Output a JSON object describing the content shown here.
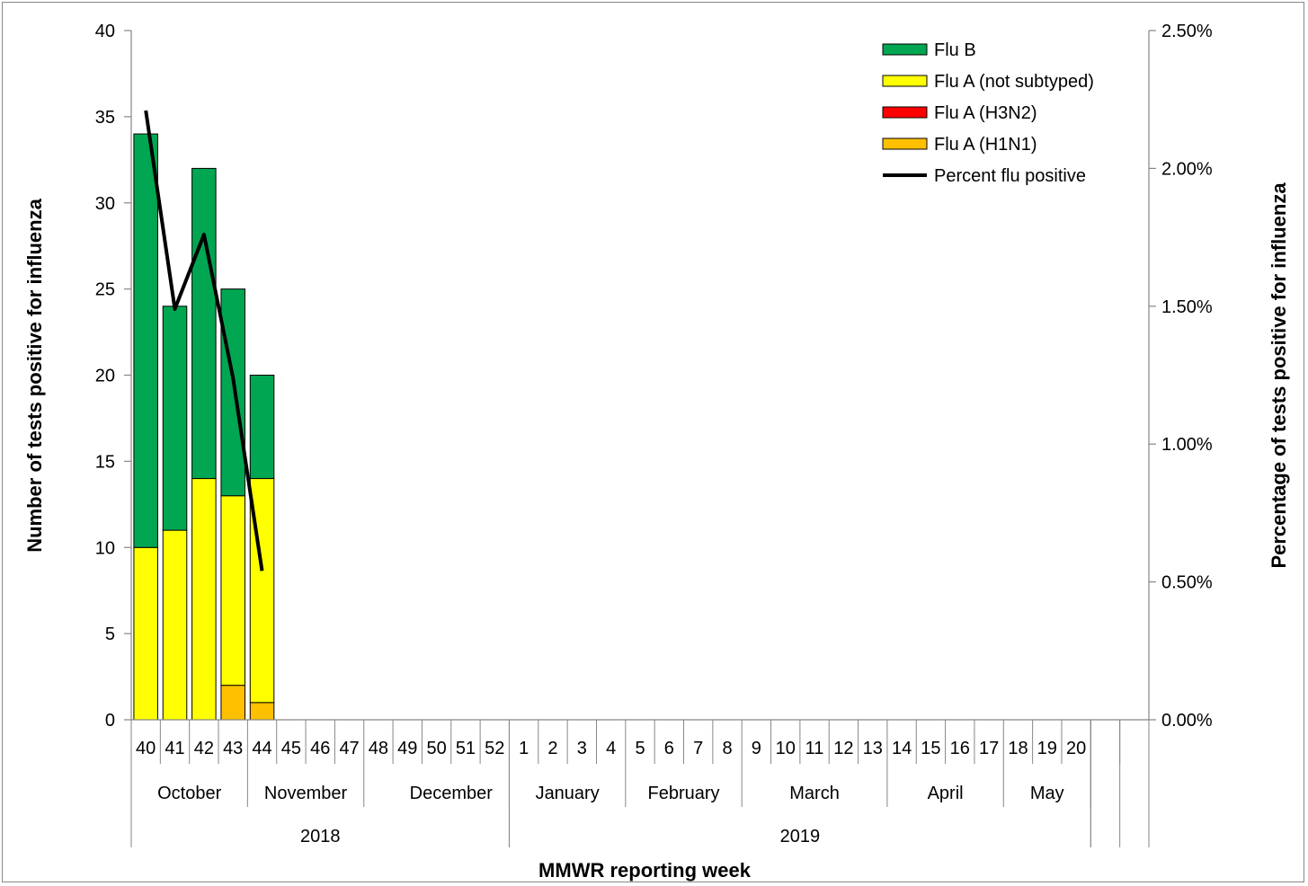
{
  "chart_data": {
    "type": "bar",
    "title": "",
    "xlabel": "MMWR reporting week",
    "ylabel_left": "Number of tests positive for influenza",
    "ylabel_right": "Percentage  of  tests  positive for influenza",
    "ylim_left": [
      0,
      40
    ],
    "ylim_right": [
      0,
      0.025
    ],
    "left_ticks": [
      "0",
      "5",
      "10",
      "15",
      "20",
      "25",
      "30",
      "35",
      "40"
    ],
    "right_ticks": [
      "0.00%",
      "0.50%",
      "1.00%",
      "1.50%",
      "2.00%",
      "2.50%"
    ],
    "grid": false,
    "legend_position": "top-right",
    "categories": [
      "40",
      "41",
      "42",
      "43",
      "44",
      "45",
      "46",
      "47",
      "48",
      "49",
      "50",
      "51",
      "52",
      "1",
      "2",
      "3",
      "4",
      "5",
      "6",
      "7",
      "8",
      "9",
      "10",
      "11",
      "12",
      "13",
      "14",
      "15",
      "16",
      "17",
      "18",
      "19",
      "20",
      "",
      ""
    ],
    "months": [
      {
        "label": "October",
        "start": 0,
        "span": 4
      },
      {
        "label": "November",
        "start": 4,
        "span": 4
      },
      {
        "label": "December",
        "start": 9,
        "span": 4
      },
      {
        "label": "January",
        "start": 13,
        "span": 4
      },
      {
        "label": "February",
        "start": 17,
        "span": 4
      },
      {
        "label": "March",
        "start": 21,
        "span": 5
      },
      {
        "label": "April",
        "start": 26,
        "span": 4
      },
      {
        "label": "May",
        "start": 30,
        "span": 3
      }
    ],
    "years": [
      {
        "label": "2018",
        "start": 0,
        "span": 13
      },
      {
        "label": "2019",
        "start": 13,
        "span": 20
      }
    ],
    "series": [
      {
        "name": "Flu A (H1N1)",
        "kind": "bar",
        "color": "#FFC000",
        "values": [
          0,
          0,
          0,
          2,
          1,
          null,
          null,
          null,
          null,
          null,
          null,
          null,
          null,
          null,
          null,
          null,
          null,
          null,
          null,
          null,
          null,
          null,
          null,
          null,
          null,
          null,
          null,
          null,
          null,
          null,
          null,
          null,
          null,
          null,
          null
        ]
      },
      {
        "name": "Flu A (H3N2)",
        "kind": "bar",
        "color": "#FF0000",
        "values": [
          0,
          0,
          0,
          0,
          0,
          null,
          null,
          null,
          null,
          null,
          null,
          null,
          null,
          null,
          null,
          null,
          null,
          null,
          null,
          null,
          null,
          null,
          null,
          null,
          null,
          null,
          null,
          null,
          null,
          null,
          null,
          null,
          null,
          null,
          null
        ]
      },
      {
        "name": "Flu A (not subtyped)",
        "kind": "bar",
        "color": "#FFFF00",
        "values": [
          10,
          11,
          14,
          11,
          13,
          null,
          null,
          null,
          null,
          null,
          null,
          null,
          null,
          null,
          null,
          null,
          null,
          null,
          null,
          null,
          null,
          null,
          null,
          null,
          null,
          null,
          null,
          null,
          null,
          null,
          null,
          null,
          null,
          null,
          null
        ]
      },
      {
        "name": "Flu B",
        "kind": "bar",
        "color": "#00A651",
        "values": [
          24,
          13,
          18,
          12,
          6,
          null,
          null,
          null,
          null,
          null,
          null,
          null,
          null,
          null,
          null,
          null,
          null,
          null,
          null,
          null,
          null,
          null,
          null,
          null,
          null,
          null,
          null,
          null,
          null,
          null,
          null,
          null,
          null,
          null,
          null
        ]
      },
      {
        "name": "Percent flu positive",
        "kind": "line",
        "axis": "right",
        "color": "#000000",
        "values": [
          0.0221,
          0.0149,
          0.0176,
          0.0124,
          0.0054,
          null,
          null,
          null,
          null,
          null,
          null,
          null,
          null,
          null,
          null,
          null,
          null,
          null,
          null,
          null,
          null,
          null,
          null,
          null,
          null,
          null,
          null,
          null,
          null,
          null,
          null,
          null,
          null,
          null,
          null
        ]
      }
    ],
    "legend_order": [
      "Flu B",
      "Flu A (not subtyped)",
      "Flu A (H3N2)",
      "Flu A (H1N1)",
      "Percent flu positive"
    ]
  }
}
